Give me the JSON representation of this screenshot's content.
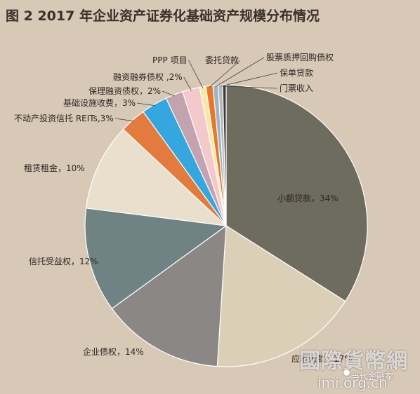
{
  "title": "图 2  2017 年企业资产证券化基础资产规模分布情况",
  "watermark": {
    "cn": "國際貨幣網",
    "sub": "当代金融家",
    "url": "imi.org.cn"
  },
  "chart_data": {
    "type": "pie",
    "title": "图 2  2017 年企业资产证券化基础资产规模分布情况",
    "slices": [
      {
        "name": "小额贷款",
        "label": "小额贷款，34%",
        "value": 34,
        "color": "#6e6b5f"
      },
      {
        "name": "应收账款",
        "label": "应收账款，17%",
        "value": 17,
        "color": "#dccfb8"
      },
      {
        "name": "企业债权",
        "label": "企业债权，14%",
        "value": 14,
        "color": "#8a8785"
      },
      {
        "name": "信托受益权",
        "label": "信托受益权，12%",
        "value": 12,
        "color": "#6f8384"
      },
      {
        "name": "租赁租金",
        "label": "租赁租金，10%",
        "value": 10,
        "color": "#e9dfcc"
      },
      {
        "name": "不动产投资信托 REITs",
        "label": "不动产投资信托 REITs,3%",
        "value": 3,
        "color": "#e27b3d"
      },
      {
        "name": "基础设施收费",
        "label": "基础设施收费，3%",
        "value": 3,
        "color": "#36a6de"
      },
      {
        "name": "保理融资债权",
        "label": "保理融资债权，2%",
        "value": 2,
        "color": "#c4a3b1"
      },
      {
        "name": "融资融券债权",
        "label": "融资融券债权 ,2%",
        "value": 2,
        "color": "#f4c9cc"
      },
      {
        "name": "PPP 项目",
        "label": "PPP 项目",
        "value": 0.7,
        "color": "#f8e8a8"
      },
      {
        "name": "委托贷款",
        "label": "委托贷款",
        "value": 0.8,
        "color": "#e6782c"
      },
      {
        "name": "股票质押回购债权",
        "label": "股票质押回购债权",
        "value": 0.6,
        "color": "#9eb4c4"
      },
      {
        "name": "保单贷款",
        "label": "保单贷款",
        "value": 0.5,
        "color": "#b8b8b8"
      },
      {
        "name": "门票收入",
        "label": "门票收入",
        "value": 0.4,
        "color": "#3a3a3a"
      }
    ]
  }
}
